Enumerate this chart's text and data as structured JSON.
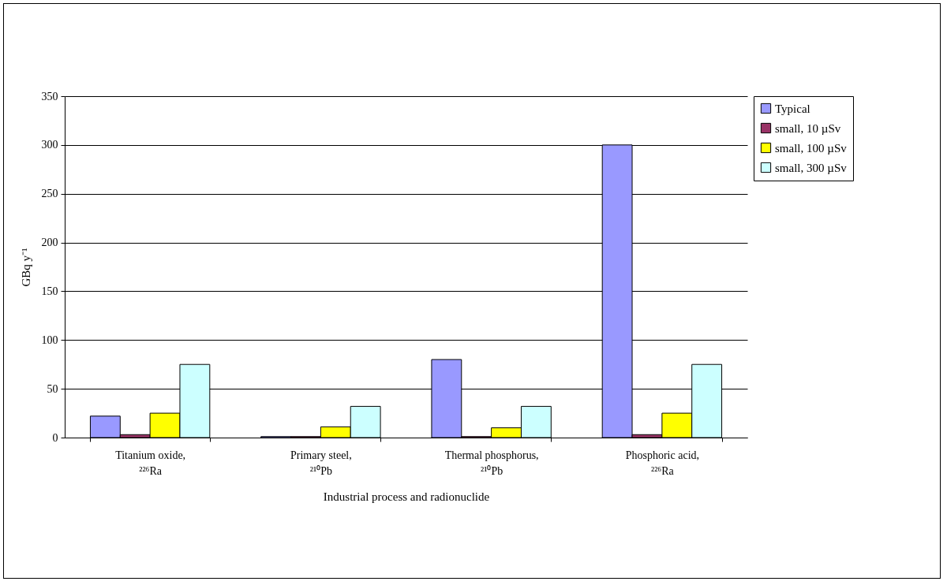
{
  "chart_data": {
    "type": "bar",
    "xlabel": "Industrial process and radionuclide",
    "ylabel": "GBq y⁻¹",
    "categories": [
      "Titanium oxide, ²²⁶Ra",
      "Primary steel, ²¹⁰Pb",
      "Thermal phosphorus, ²¹⁰Pb",
      "Phosphoric acid, ²²⁶Ra"
    ],
    "series": [
      {
        "name": "Typical",
        "color": "#9999ff",
        "values": [
          22,
          1,
          80,
          300
        ]
      },
      {
        "name": "small, 10 µSv",
        "color": "#993366",
        "values": [
          3,
          1,
          1,
          3
        ]
      },
      {
        "name": "small, 100 µSv",
        "color": "#ffff00",
        "values": [
          25,
          11,
          10,
          25
        ]
      },
      {
        "name": "small, 300 µSv",
        "color": "#ccffff",
        "values": [
          75,
          32,
          32,
          75
        ]
      }
    ],
    "ylim": [
      0,
      350
    ],
    "yticks": [
      0,
      50,
      100,
      150,
      200,
      250,
      300,
      350
    ],
    "grid": "y",
    "legend": "right"
  }
}
